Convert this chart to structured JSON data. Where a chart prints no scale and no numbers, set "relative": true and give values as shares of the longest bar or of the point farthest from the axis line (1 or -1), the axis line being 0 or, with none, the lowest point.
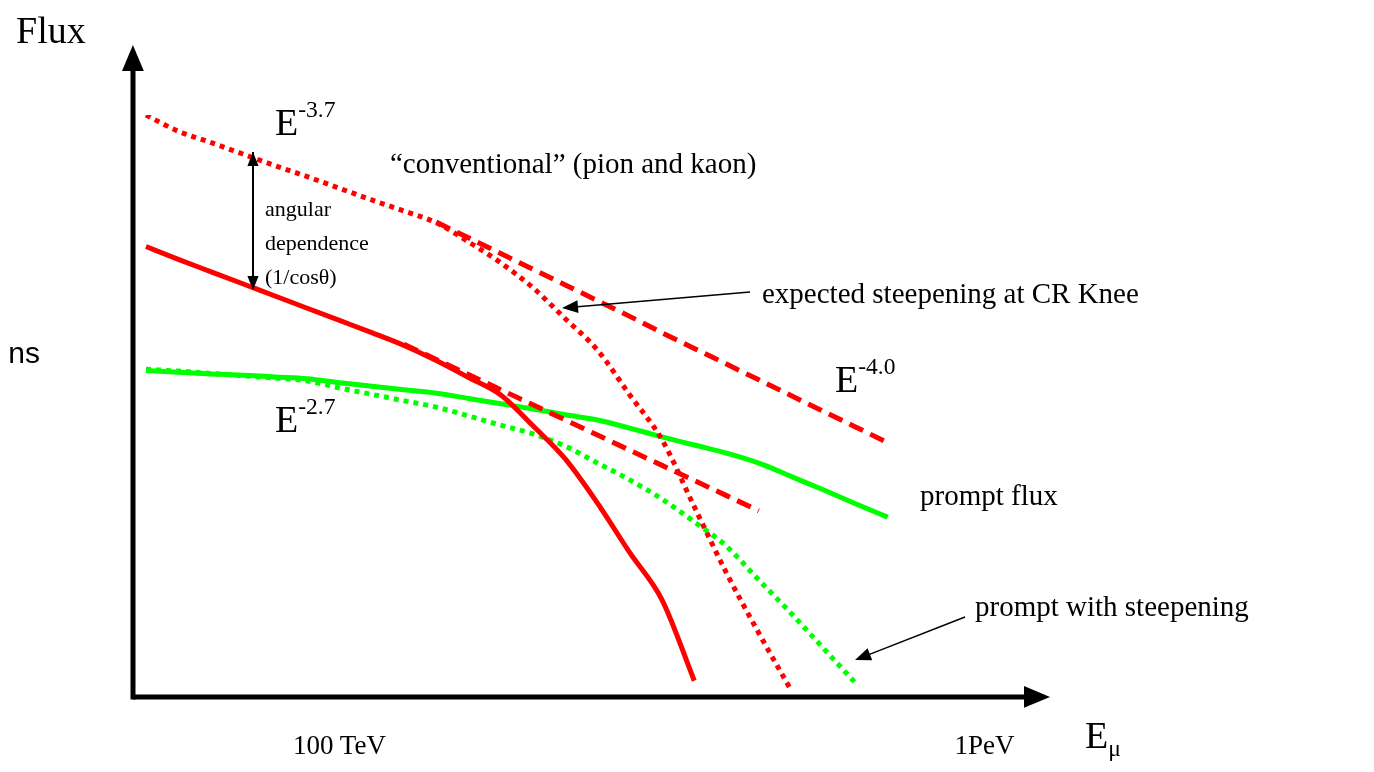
{
  "chart_data": {
    "type": "line",
    "relative": true,
    "ylabel": "Flux",
    "xlabel": "E$_{μ}$",
    "tick_labels": "x",
    "categories": [
      null,
      null,
      null,
      null,
      null,
      null,
      "100 TeV",
      null,
      null,
      null,
      null,
      null,
      null,
      null,
      null,
      null,
      null,
      null,
      null,
      null,
      null,
      null,
      null,
      null,
      null,
      null,
      "1PeV",
      null,
      null
    ],
    "series": [
      {
        "color": "#ff0000",
        "line_style": "dotted",
        "values": [
          1,
          0.972,
          0.953,
          0.933,
          0.913,
          0.894,
          0.874,
          0.854,
          0.835,
          0.815,
          0.782,
          0.746,
          0.703,
          0.65,
          0.596,
          0.519,
          0.442,
          0.327,
          0.213,
          0.11,
          0.012,
          null,
          null,
          null,
          null,
          null,
          null,
          null,
          null
        ]
      },
      {
        "color": "#ff0000",
        "line_style": "dashed",
        "values": [
          null,
          null,
          null,
          null,
          null,
          null,
          null,
          null,
          null,
          0.816,
          0.789,
          0.762,
          0.735,
          0.708,
          0.681,
          0.654,
          0.626,
          0.599,
          0.572,
          0.545,
          0.518,
          0.491,
          0.464,
          0.437,
          null,
          null,
          null,
          null,
          null
        ]
      },
      {
        "color": "#ff0000",
        "line_style": "solid",
        "values": [
          0.774,
          0.752,
          0.731,
          0.71,
          0.689,
          0.668,
          0.647,
          0.626,
          0.604,
          0.578,
          0.549,
          0.519,
          0.466,
          0.409,
          0.333,
          0.248,
          0.167,
          0.028,
          null,
          null,
          null,
          null,
          null,
          null,
          null,
          null,
          null,
          null,
          null
        ]
      },
      {
        "color": "#ff0000",
        "line_style": "dashed",
        "values": [
          null,
          null,
          null,
          null,
          null,
          null,
          null,
          null,
          0.606,
          0.58,
          0.554,
          0.528,
          0.502,
          0.476,
          0.45,
          0.424,
          0.398,
          0.372,
          0.346,
          0.32,
          null,
          null,
          null,
          null,
          null,
          null,
          null,
          null,
          null
        ]
      },
      {
        "color": "#00ff00",
        "line_style": "solid",
        "values": [
          0.561,
          0.558,
          0.555,
          0.553,
          0.55,
          0.547,
          0.54,
          0.534,
          0.528,
          0.522,
          0.513,
          0.504,
          0.495,
          0.485,
          0.476,
          0.462,
          0.447,
          0.433,
          0.419,
          0.402,
          0.379,
          0.356,
          0.332,
          0.309,
          null,
          null,
          null,
          null,
          null
        ]
      },
      {
        "color": "#00ff00",
        "line_style": "dotted",
        "values": [
          0.563,
          0.56,
          0.556,
          0.552,
          0.548,
          0.543,
          0.531,
          0.52,
          0.509,
          0.498,
          0.483,
          0.467,
          0.452,
          0.431,
          0.402,
          0.373,
          0.34,
          0.301,
          0.259,
          0.201,
          0.144,
          0.084,
          0.024,
          null,
          null,
          null,
          null,
          null,
          null
        ]
      }
    ],
    "annotations": [
      "E$^{-3.7}$",
      "“conventional” (pion and kaon)",
      "angular dependence (1/cosθ)",
      "expected steepening at CR Knee",
      "E$^{-4.0}$",
      "E$^{-2.7}$",
      "prompt flux",
      "prompt with steepening",
      "ns"
    ]
  }
}
